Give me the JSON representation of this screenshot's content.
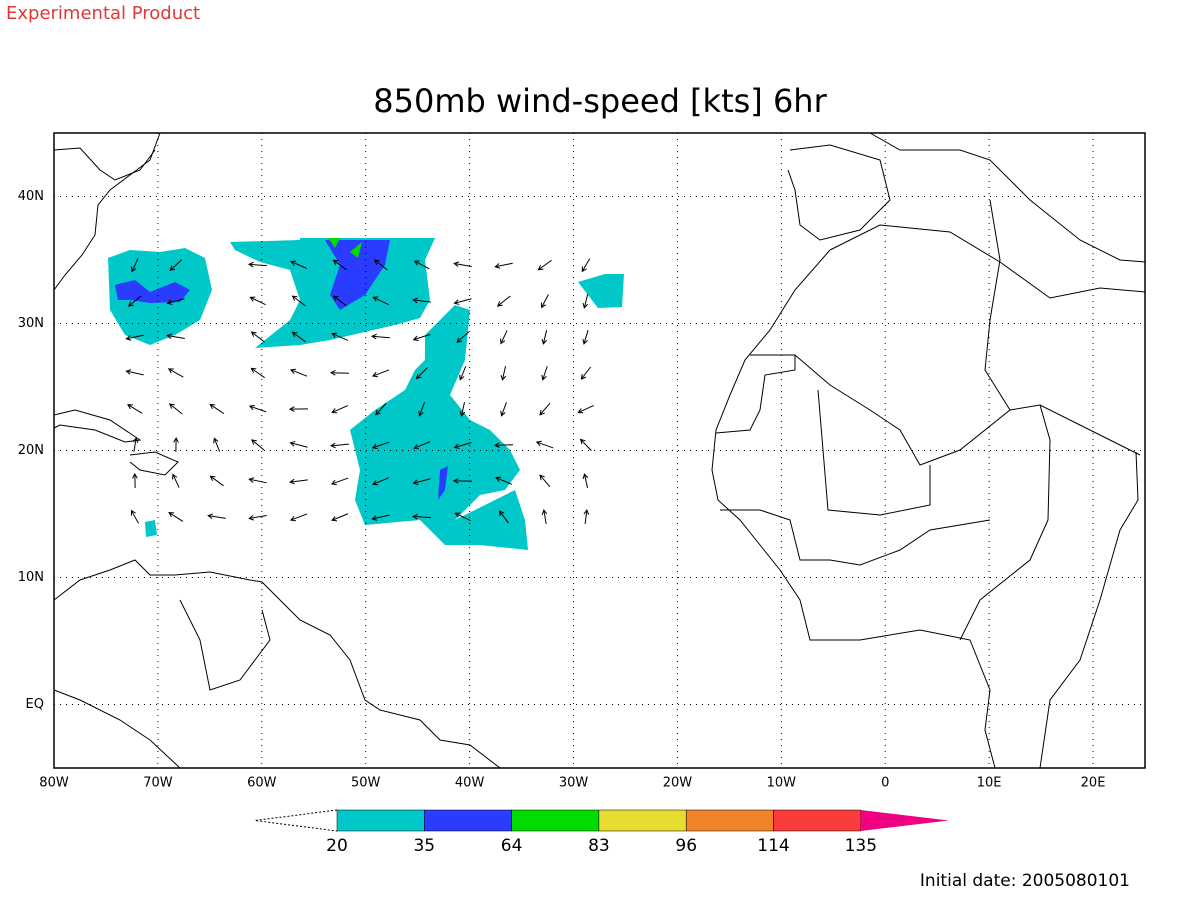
{
  "header": {
    "note": "Experimental Product"
  },
  "chart_data": {
    "type": "map",
    "title": "850mb wind-speed [kts] 6hr",
    "xlim": [
      -80,
      25
    ],
    "ylim": [
      -5,
      45
    ],
    "xticks": [
      {
        "value": -80,
        "label": "80W"
      },
      {
        "value": -70,
        "label": "70W"
      },
      {
        "value": -60,
        "label": "60W"
      },
      {
        "value": -50,
        "label": "50W"
      },
      {
        "value": -40,
        "label": "40W"
      },
      {
        "value": -30,
        "label": "30W"
      },
      {
        "value": -20,
        "label": "20W"
      },
      {
        "value": -10,
        "label": "10W"
      },
      0,
      {
        "value": 10,
        "label": "10E"
      },
      {
        "value": 20,
        "label": "20E"
      }
    ],
    "yticks": [
      {
        "value": 0,
        "label": "EQ"
      },
      {
        "value": 10,
        "label": "10N"
      },
      {
        "value": 20,
        "label": "20N"
      },
      {
        "value": 30,
        "label": "30N"
      },
      {
        "value": 40,
        "label": "40N"
      }
    ],
    "grid": true,
    "colorbar": {
      "levels": [
        20,
        35,
        64,
        83,
        96,
        114,
        135
      ],
      "colors": [
        "#00c8c8",
        "#2a3cff",
        "#00dc00",
        "#e6dc32",
        "#f08228",
        "#fa3c3c",
        "#f00082"
      ]
    },
    "annotation": "Initial date: 2005080101"
  }
}
